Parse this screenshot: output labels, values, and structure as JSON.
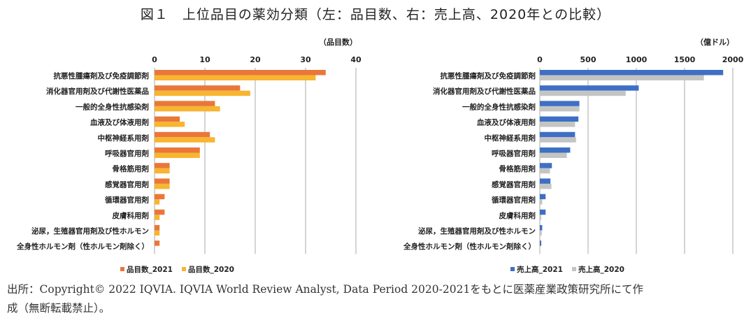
{
  "title": "図１　上位品目の薬効分類（左：品目数、右：売上高、2020年との比較）",
  "footnote": [
    "出所：Copyright© 2022 IQVIA. IQVIA World Review Analyst, Data Period 2020-2021をもとに医薬産業政策研究所にて作",
    "成（無断転載禁止）。"
  ],
  "chart_data": [
    {
      "type": "bar",
      "orientation": "horizontal",
      "unit_label": "（品目数）",
      "xlim": [
        0,
        40
      ],
      "ticks": [
        0,
        10,
        20,
        30,
        40
      ],
      "grid": true,
      "legend": "bottom",
      "categories": [
        "抗悪性腫瘍剤及び免疫調節剤",
        "消化器官用剤及び代謝性医薬品",
        "一般的全身性抗感染剤",
        "血液及び体液用剤",
        "中枢神経系用剤",
        "呼吸器官用剤",
        "骨格筋用剤",
        "感覚器官用剤",
        "循環器官用剤",
        "皮膚科用剤",
        "泌尿，生殖器官用剤及び性ホルモン",
        "全身性ホルモン剤（性ホルモン剤除く）"
      ],
      "series": [
        {
          "name": "品目数_2021",
          "color": "#e9773a",
          "values": [
            34,
            17,
            12,
            5,
            11,
            9,
            3,
            3,
            2,
            2,
            1,
            1
          ]
        },
        {
          "name": "品目数_2020",
          "color": "#f7b531",
          "values": [
            32,
            19,
            13,
            6,
            12,
            9,
            3,
            3,
            1,
            1,
            1,
            0
          ]
        }
      ]
    },
    {
      "type": "bar",
      "orientation": "horizontal",
      "unit_label": "（億ドル）",
      "xlim": [
        0,
        2000
      ],
      "ticks": [
        0,
        500,
        1000,
        1500,
        2000
      ],
      "grid": true,
      "legend": "bottom",
      "categories": [
        "抗悪性腫瘍剤及び免疫調節剤",
        "消化器官用剤及び代謝性医薬品",
        "一般的全身性抗感染剤",
        "血液及び体液用剤",
        "中枢神経系用剤",
        "呼吸器官用剤",
        "骨格筋用剤",
        "感覚器官用剤",
        "循環器官用剤",
        "皮膚科用剤",
        "泌尿，生殖器官用剤及び性ホルモン",
        "全身性ホルモン剤（性ホルモン剤除く）"
      ],
      "series": [
        {
          "name": "売上高_2021",
          "color": "#3e6fc4",
          "values": [
            1900,
            1025,
            410,
            400,
            365,
            315,
            125,
            110,
            60,
            60,
            25,
            15
          ]
        },
        {
          "name": "売上高_2020",
          "color": "#c4c4c4",
          "values": [
            1700,
            890,
            410,
            365,
            375,
            280,
            105,
            120,
            25,
            15,
            20,
            0
          ]
        }
      ]
    }
  ]
}
